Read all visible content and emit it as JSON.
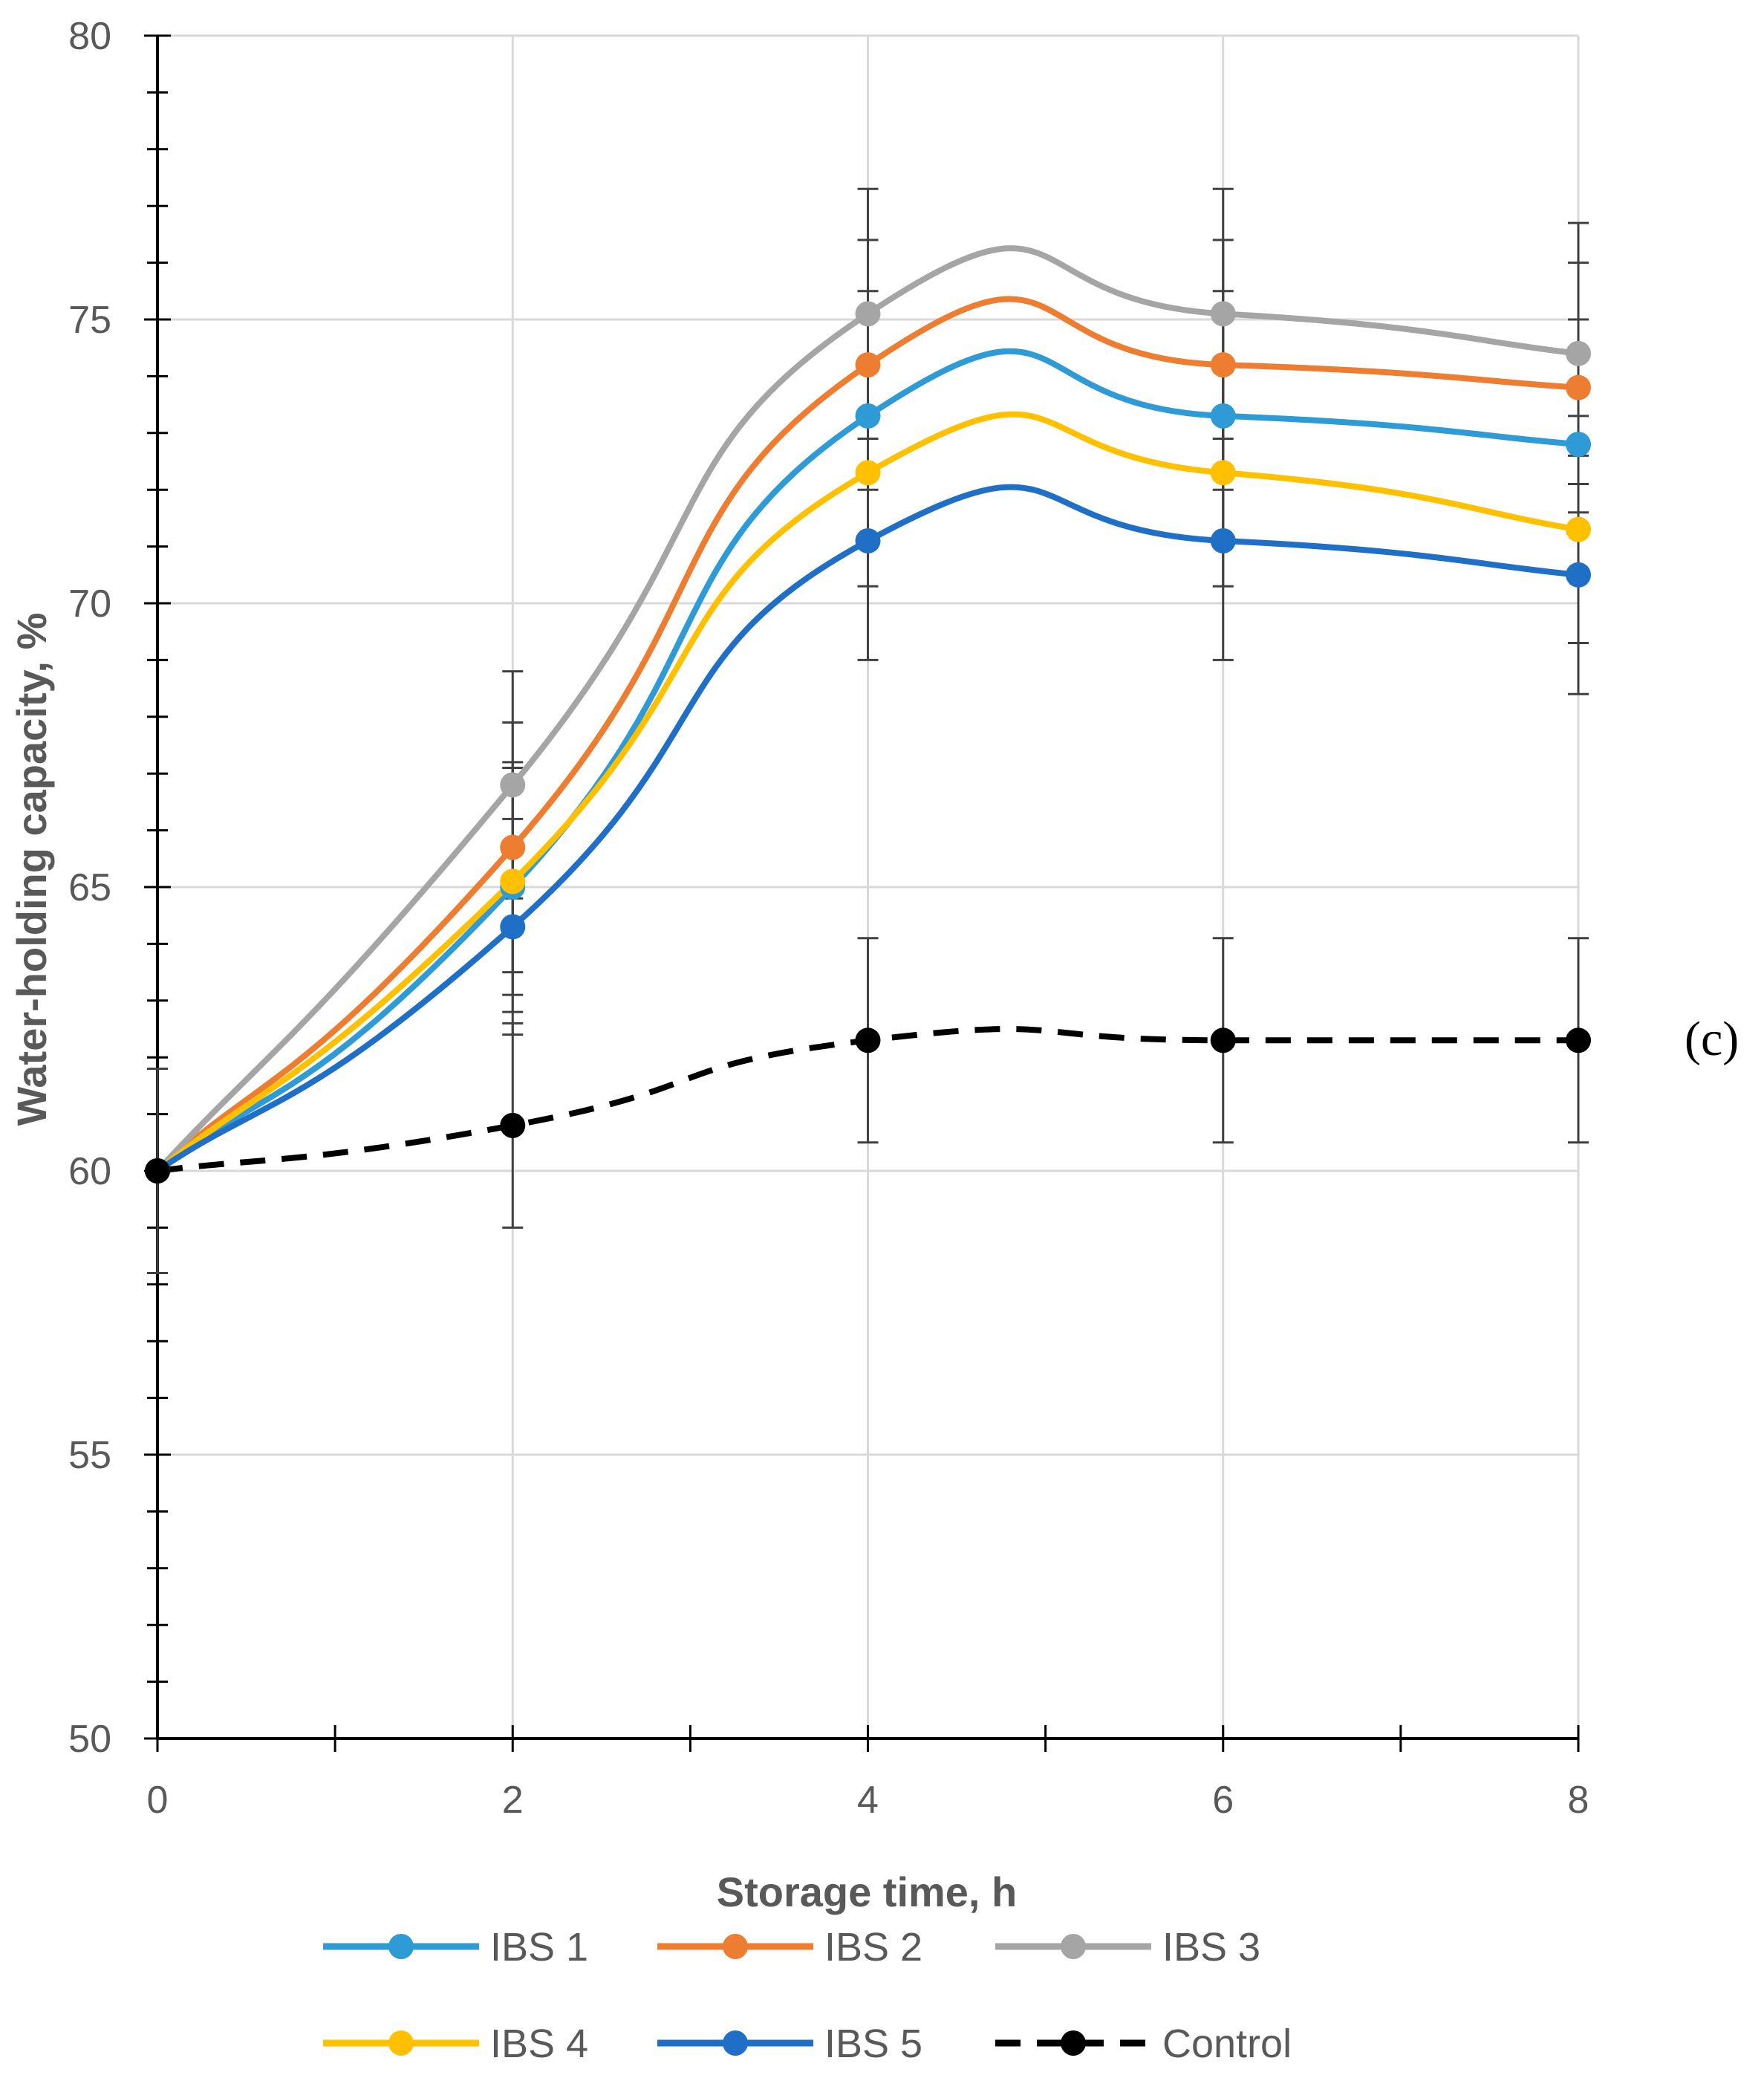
{
  "chart_data": {
    "type": "line",
    "title": "",
    "xlabel": "Storage time, h",
    "ylabel": "Water-holding capacity, %",
    "xlim": [
      0,
      8
    ],
    "ylim": [
      50,
      80
    ],
    "x_ticks": [
      0,
      2,
      4,
      6,
      8
    ],
    "y_ticks": [
      50,
      55,
      60,
      65,
      70,
      75,
      80
    ],
    "x_tick_labels": [
      "0",
      "2",
      "4",
      "6",
      "8"
    ],
    "y_tick_labels": [
      "50",
      "55",
      "60",
      "65",
      "70",
      "75",
      "80"
    ],
    "grid": true,
    "legend_position": "bottom",
    "panel_label": "(c)",
    "x": [
      0,
      2,
      4,
      6,
      8
    ],
    "series": [
      {
        "name": "IBS 1",
        "color": "#2e9bd6",
        "dashed": false,
        "values": [
          60.0,
          65.0,
          73.3,
          73.3,
          72.8
        ],
        "errors": [
          0,
          2.2,
          2.2,
          2.2,
          2.2
        ]
      },
      {
        "name": "IBS 2",
        "color": "#ed7d31",
        "dashed": false,
        "values": [
          60.0,
          65.7,
          74.2,
          74.2,
          73.8
        ],
        "errors": [
          0,
          2.2,
          2.2,
          2.2,
          2.2
        ]
      },
      {
        "name": "IBS 3",
        "color": "#a5a5a5",
        "dashed": false,
        "values": [
          60.0,
          66.8,
          75.1,
          75.1,
          74.4
        ],
        "errors": [
          0,
          2.0,
          2.2,
          2.2,
          2.3
        ]
      },
      {
        "name": "IBS 4",
        "color": "#ffc000",
        "dashed": false,
        "values": [
          60.0,
          65.1,
          72.3,
          72.3,
          71.3
        ],
        "errors": [
          0,
          2.0,
          2.0,
          2.0,
          2.0
        ]
      },
      {
        "name": "IBS 5",
        "color": "#1f6fc6",
        "dashed": false,
        "values": [
          60.0,
          64.3,
          71.1,
          71.1,
          70.5
        ],
        "errors": [
          0,
          1.9,
          2.1,
          2.1,
          2.1
        ]
      },
      {
        "name": "Control",
        "color": "#000000",
        "dashed": true,
        "values": [
          60.0,
          60.8,
          62.3,
          62.3,
          62.3
        ],
        "errors": [
          1.8,
          1.8,
          1.8,
          1.8,
          1.8
        ]
      }
    ]
  }
}
